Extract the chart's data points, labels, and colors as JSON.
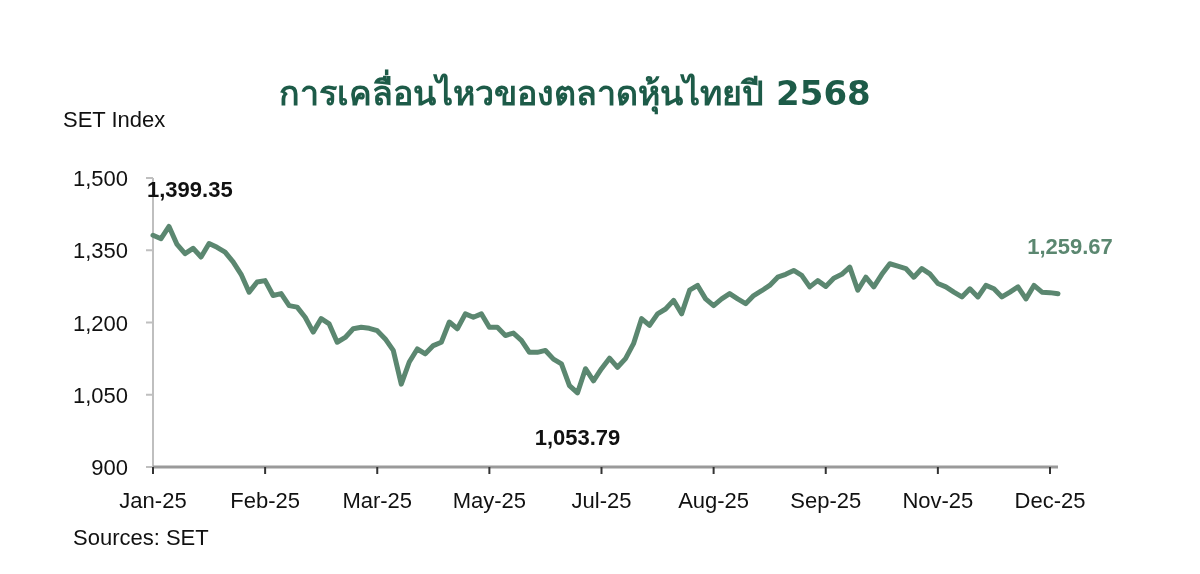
{
  "chart_data": {
    "type": "line",
    "title": "การเคลื่อนไหวของตลาดหุ้นไทยปี 2568",
    "ylabel": "SET Index",
    "categories": [
      "Jan-25",
      null,
      null,
      null,
      null,
      null,
      null,
      null,
      null,
      null,
      null,
      null,
      null,
      null,
      "Feb-25",
      null,
      null,
      null,
      null,
      null,
      null,
      null,
      null,
      null,
      null,
      null,
      null,
      null,
      "Mar-25",
      null,
      null,
      null,
      null,
      null,
      null,
      null,
      null,
      null,
      null,
      null,
      null,
      null,
      "May-25",
      null,
      null,
      null,
      null,
      null,
      null,
      null,
      null,
      null,
      null,
      null,
      null,
      null,
      "Jul-25",
      null,
      null,
      null,
      null,
      null,
      null,
      null,
      null,
      null,
      null,
      null,
      null,
      null,
      "Aug-25",
      null,
      null,
      null,
      null,
      null,
      null,
      null,
      null,
      null,
      null,
      null,
      null,
      null,
      "Sep-25",
      null,
      null,
      null,
      null,
      null,
      null,
      null,
      null,
      null,
      null,
      null,
      null,
      null,
      "Nov-25",
      null,
      null,
      null,
      null,
      null,
      null,
      null,
      null,
      null,
      null,
      null,
      null,
      null,
      "Dec-25",
      null
    ],
    "series": [
      {
        "color": "#5b8770",
        "values": [
          1381,
          1374,
          1399.35,
          1362,
          1343,
          1354,
          1336,
          1364,
          1356,
          1346,
          1326,
          1300,
          1263,
          1284,
          1287,
          1256,
          1260,
          1235,
          1232,
          1211,
          1180,
          1208,
          1197,
          1159,
          1169,
          1187,
          1190,
          1188,
          1183,
          1166,
          1142,
          1072,
          1118,
          1145,
          1135,
          1152,
          1159,
          1201,
          1187,
          1218,
          1211,
          1218,
          1190,
          1190,
          1173,
          1178,
          1163,
          1138,
          1138,
          1142,
          1124,
          1114,
          1069,
          1053.79,
          1104,
          1079,
          1104,
          1126,
          1107,
          1125,
          1156,
          1208,
          1194,
          1218,
          1228,
          1246,
          1218,
          1267,
          1277,
          1249,
          1235,
          1249,
          1260,
          1249,
          1239,
          1256,
          1266,
          1277,
          1294,
          1300,
          1308,
          1298,
          1274,
          1287,
          1275,
          1292,
          1300,
          1315,
          1267,
          1294,
          1274,
          1300,
          1322,
          1317,
          1312,
          1294,
          1312,
          1301,
          1281,
          1274,
          1263,
          1253,
          1270,
          1253,
          1277,
          1270,
          1253,
          1263,
          1274,
          1249,
          1277,
          1263,
          1262,
          1259.67
        ]
      }
    ],
    "ylim": [
      900,
      1500
    ],
    "yticks": [
      900,
      {
        "value": 1050,
        "label": "1,050"
      },
      {
        "value": 1200,
        "label": "1,200"
      },
      {
        "value": 1350,
        "label": "1,350"
      },
      {
        "value": 1500,
        "label": "1,500"
      }
    ],
    "line_style": "solid",
    "annotations": [
      "1,399.35",
      {
        "text": "1,053.79",
        "y": 1053.79
      },
      "1,259.67",
      "Sources: SET"
    ]
  }
}
